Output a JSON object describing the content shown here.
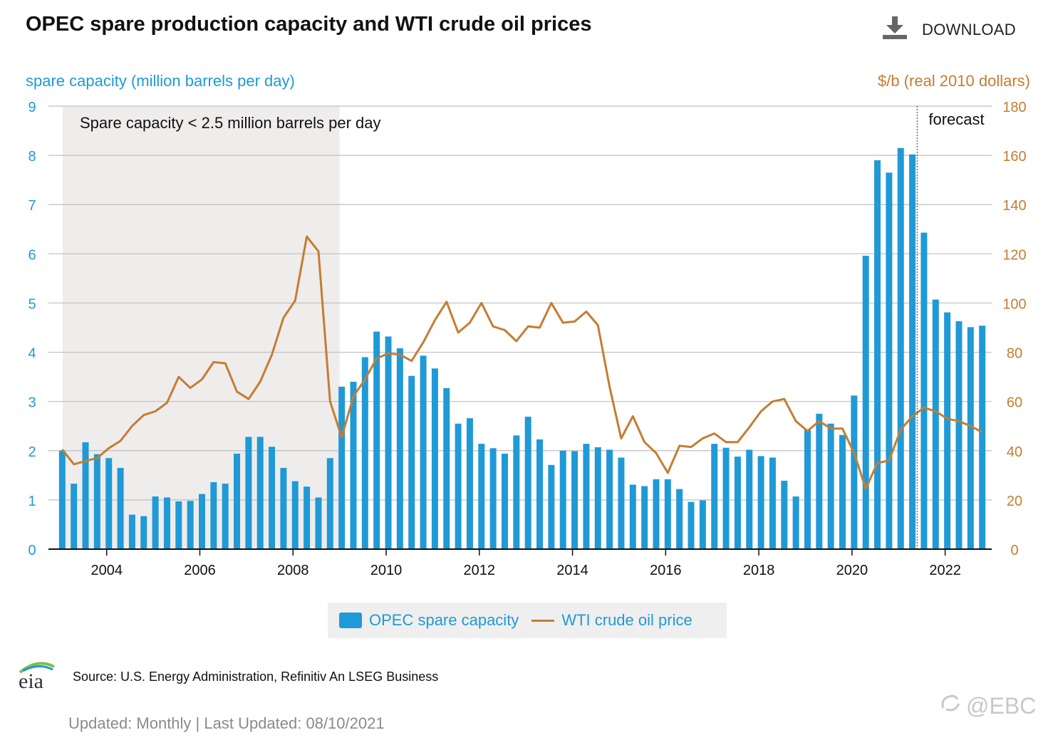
{
  "title": "OPEC spare production capacity and WTI crude oil prices",
  "download_label": "DOWNLOAD",
  "left_axis_title": "spare capacity (million barrels per day)",
  "right_axis_title": "$/b (real 2010 dollars)",
  "shaded_label": "Spare capacity < 2.5 million barrels per day",
  "forecast_label": "forecast",
  "legend": {
    "bar": "OPEC spare capacity",
    "line": "WTI crude oil price"
  },
  "source": "Source: U.S. Energy Administration, Refinitiv An LSEG Business",
  "updated": "Updated: Monthly | Last Updated: 08/10/2021",
  "watermark": "@EBC",
  "logo_text": "eia",
  "colors": {
    "bar": "#1f9ad6",
    "line": "#c47d32",
    "shade": "#efecec",
    "grid": "#bfbfbf"
  },
  "chart_data": {
    "type": "bar+line",
    "x_start": 2003.0,
    "x_step": 0.25,
    "xlim": [
      2002.75,
      2023.0
    ],
    "x_ticks": [
      2004,
      2006,
      2008,
      2010,
      2012,
      2014,
      2016,
      2018,
      2020,
      2022
    ],
    "y_left": {
      "label": "spare capacity (million barrels per day)",
      "lim": [
        0,
        9
      ],
      "ticks": [
        0,
        1,
        2,
        3,
        4,
        5,
        6,
        7,
        8,
        9
      ]
    },
    "y_right": {
      "label": "$/b (real 2010 dollars)",
      "lim": [
        0,
        180
      ],
      "ticks": [
        0,
        20,
        40,
        60,
        80,
        100,
        120,
        140,
        160,
        180
      ]
    },
    "shaded_region": [
      2002.75,
      2009.0
    ],
    "forecast_start": 2021.4,
    "series": [
      {
        "name": "OPEC spare capacity",
        "axis": "left",
        "type": "bar",
        "values": [
          2.0,
          1.33,
          2.17,
          1.93,
          1.85,
          1.65,
          0.7,
          0.67,
          1.07,
          1.05,
          0.97,
          0.98,
          1.12,
          1.36,
          1.33,
          1.94,
          2.28,
          2.28,
          2.08,
          1.65,
          1.38,
          1.27,
          1.05,
          1.85,
          3.3,
          3.4,
          3.9,
          4.42,
          4.32,
          4.08,
          3.52,
          3.93,
          3.67,
          3.27,
          2.55,
          2.66,
          2.14,
          2.05,
          1.94,
          2.31,
          2.69,
          2.23,
          1.71,
          2.0,
          1.99,
          2.14,
          2.07,
          2.02,
          1.86,
          1.31,
          1.28,
          1.42,
          1.42,
          1.22,
          0.96,
          0.99,
          2.14,
          2.06,
          1.88,
          2.02,
          1.89,
          1.86,
          1.39,
          1.07,
          2.42,
          2.75,
          2.55,
          2.32,
          3.12,
          5.96,
          7.9,
          7.65,
          8.15,
          8.02,
          6.43,
          5.07,
          4.81,
          4.63,
          4.51,
          4.54
        ]
      },
      {
        "name": "WTI crude oil price",
        "axis": "right",
        "type": "line",
        "values": [
          40.5,
          34.5,
          35.8,
          37.0,
          41.0,
          44.0,
          50.0,
          54.5,
          56.0,
          59.5,
          70.0,
          65.5,
          69.0,
          76.0,
          75.5,
          64.0,
          61.0,
          68.0,
          79.0,
          94.0,
          101.0,
          127.0,
          121.0,
          60.0,
          45.5,
          62.0,
          69.0,
          77.5,
          79.5,
          79.0,
          76.5,
          84.0,
          93.0,
          100.5,
          88.0,
          92.0,
          100.0,
          90.5,
          89.0,
          84.5,
          90.5,
          90.0,
          100.0,
          92.0,
          92.5,
          96.5,
          91.0,
          66.0,
          45.0,
          54.0,
          43.5,
          39.0,
          31.0,
          42.0,
          41.5,
          45.0,
          47.0,
          43.5,
          43.5,
          49.5,
          56.0,
          60.0,
          61.0,
          52.0,
          48.0,
          52.0,
          49.0,
          49.0,
          39.0,
          24.5,
          35.0,
          36.0,
          48.5,
          54.0,
          57.5,
          56.0,
          53.0,
          52.0,
          50.0,
          47.5
        ]
      }
    ]
  }
}
